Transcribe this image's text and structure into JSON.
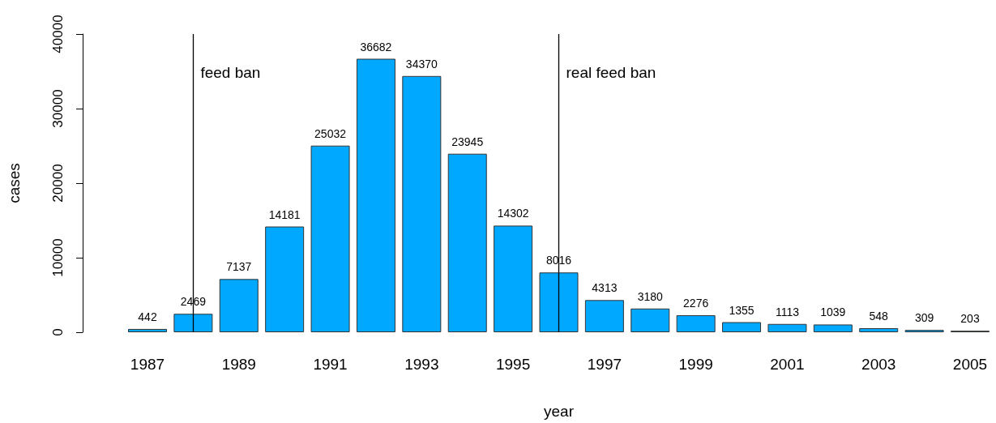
{
  "chart_data": {
    "type": "bar",
    "xlabel": "year",
    "ylabel": "cases",
    "x": [
      1987,
      1988,
      1989,
      1990,
      1991,
      1992,
      1993,
      1994,
      1995,
      1996,
      1997,
      1998,
      1999,
      2000,
      2001,
      2002,
      2003,
      2004,
      2005
    ],
    "values": [
      442,
      2469,
      7137,
      14181,
      25032,
      36682,
      34370,
      23945,
      14302,
      8016,
      4313,
      3180,
      2276,
      1355,
      1113,
      1039,
      548,
      309,
      203
    ],
    "color": "#00a9ff",
    "data_labels": true,
    "xlim": [
      1987,
      2005
    ],
    "xticks": [
      1987,
      1989,
      1991,
      1993,
      1995,
      1997,
      1999,
      2001,
      2003,
      2005
    ],
    "ylim": [
      0,
      40000
    ],
    "yticks": [
      0,
      10000,
      20000,
      30000,
      40000
    ],
    "grid": false,
    "ref_lines": [
      {
        "axis": "x",
        "value": 1988,
        "label": "feed ban",
        "color": "#000000"
      },
      {
        "axis": "x",
        "value": 1996,
        "label": "real feed ban",
        "color": "#000000"
      }
    ]
  }
}
